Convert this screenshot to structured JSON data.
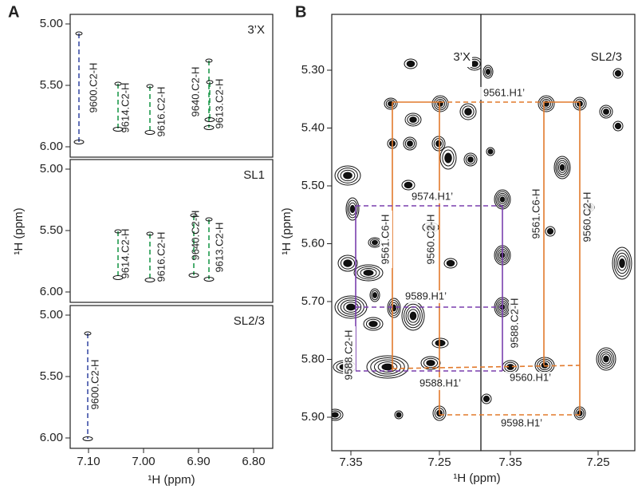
{
  "panel_a": {
    "label": "A",
    "y_axis_title": "¹H (ppm)",
    "x_axis_title": "¹H (ppm)",
    "x_ticks": [
      "7.10",
      "7.00",
      "6.90",
      "6.80"
    ],
    "subpanels": [
      {
        "title": "3’X",
        "y_ticks": [
          "5.00",
          "5.50",
          "6.00"
        ],
        "annotations": [
          "9600.C2-H",
          "9614.C2-H",
          "9616.C2-H",
          "9640.C2-H",
          "9613.C2-H"
        ]
      },
      {
        "title": "SL1",
        "y_ticks": [
          "5.00",
          "5.50",
          "6.00"
        ],
        "annotations": [
          "9614.C2-H",
          "9616.C2-H",
          "9640.C2-H",
          "9613.C2-H"
        ]
      },
      {
        "title": "SL2/3",
        "y_ticks": [
          "5.00",
          "5.50",
          "6.00"
        ],
        "annotations": [
          "9600.C2-H"
        ]
      }
    ]
  },
  "panel_b": {
    "label": "B",
    "y_axis_title": "¹H (ppm)",
    "x_axis_title": "¹H (ppm)",
    "y_ticks": [
      "5.30",
      "5.40",
      "5.50",
      "5.60",
      "5.70",
      "5.80",
      "5.90"
    ],
    "subpanels": [
      {
        "title": "3’X",
        "x_ticks": [
          "7.35",
          "7.25"
        ]
      },
      {
        "title": "SL2/3",
        "x_ticks": [
          "7.35",
          "7.25"
        ]
      }
    ],
    "annotations": [
      "9561.H1’",
      "9561.C6-H",
      "9560.C2-H",
      "9561.C6-H",
      "9560.C2-H",
      "9560.H1’",
      "9598.H1’",
      "9574.H1’",
      "9589.H1’",
      "9588.C2-H",
      "9588.C2-H",
      "9588.H1’"
    ]
  }
}
